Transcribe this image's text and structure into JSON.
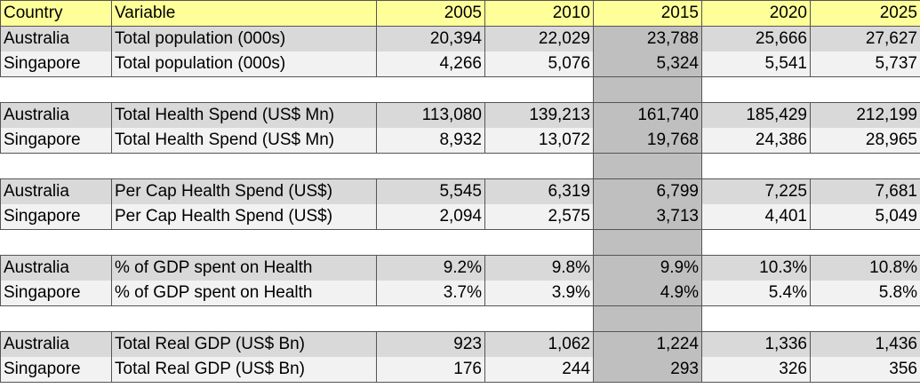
{
  "headers": [
    "Country",
    "Variable",
    "2005",
    "2010",
    "2015",
    "2020",
    "2025"
  ],
  "rows": [
    [
      "Australia",
      "Total population (000s)",
      "20,394",
      "22,029",
      "23,788",
      "25,666",
      "27,627"
    ],
    [
      "Singapore",
      "Total population (000s)",
      "4,266",
      "5,076",
      "5,324",
      "5,541",
      "5,737"
    ],
    [
      "Australia",
      "Total Health Spend (US$ Mn)",
      "113,080",
      "139,213",
      "161,740",
      "185,429",
      "212,199"
    ],
    [
      "Singapore",
      "Total Health Spend (US$ Mn)",
      "8,932",
      "13,072",
      "19,768",
      "24,386",
      "28,965"
    ],
    [
      "Australia",
      "Per Cap Health Spend (US$)",
      "5,545",
      "6,319",
      "6,799",
      "7,225",
      "7,681"
    ],
    [
      "Singapore",
      "Per Cap Health Spend (US$)",
      "2,094",
      "2,575",
      "3,713",
      "4,401",
      "5,049"
    ],
    [
      "Australia",
      "% of GDP spent on Health",
      "9.2%",
      "9.8%",
      "9.9%",
      "10.3%",
      "10.8%"
    ],
    [
      "Singapore",
      "% of GDP spent on Health",
      "3.7%",
      "3.9%",
      "4.9%",
      "5.4%",
      "5.8%"
    ],
    [
      "Australia",
      "Total Real GDP (US$ Bn)",
      "923",
      "1,062",
      "1,224",
      "1,336",
      "1,436"
    ],
    [
      "Singapore",
      "Total Real GDP (US$ Bn)",
      "176",
      "244",
      "293",
      "326",
      "356"
    ]
  ],
  "colors": {
    "header_bg": "#ffff99",
    "row_dark": "#d9d9d9",
    "row_light": "#f2f2f2",
    "highlight_column": "#bfbfbf"
  }
}
